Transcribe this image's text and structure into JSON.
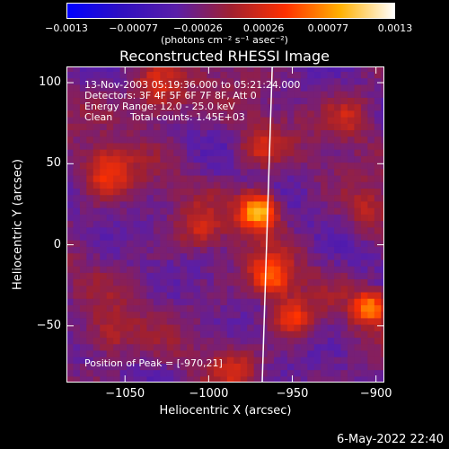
{
  "chart_data": {
    "type": "heatmap",
    "title": "Reconstructed RHESSI Image",
    "xlabel": "Heliocentric X (arcsec)",
    "ylabel": "Heliocentric Y (arcsec)",
    "xlim": [
      -1085,
      -895
    ],
    "ylim": [
      -85,
      110
    ],
    "xticks": [
      -1050,
      -1000,
      -950,
      -900
    ],
    "xtick_labels": [
      "−1050",
      "−1000",
      "−950",
      "−900"
    ],
    "yticks": [
      -50,
      0,
      50,
      100
    ],
    "ytick_labels": [
      "−50",
      "0",
      "50",
      "100"
    ],
    "colorbar": {
      "range": [
        -0.0013,
        0.0013
      ],
      "ticks": [
        -0.0013,
        -0.00077,
        -0.00026,
        0.00026,
        0.00077,
        0.0013
      ],
      "tick_labels": [
        "−0.0013",
        "−0.00077",
        "−0.00026",
        "0.00026",
        "0.00077",
        "0.0013"
      ],
      "unit_label": "(photons cm⁻² s⁻¹ asec⁻²)",
      "colors": [
        "#0000ff",
        "#3010c0",
        "#5a1ea8",
        "#a02030",
        "#ff3000",
        "#ffb000",
        "#ffffff"
      ]
    },
    "peak": {
      "x": -970,
      "y": 21,
      "value": 0.0013
    },
    "sources": [
      {
        "x": -970,
        "y": 21,
        "amplitude": 0.0013,
        "width": 8
      },
      {
        "x": -963,
        "y": -20,
        "amplitude": 0.00085,
        "width": 9
      },
      {
        "x": -950,
        "y": -45,
        "amplitude": 0.0007,
        "width": 8
      },
      {
        "x": -903,
        "y": -38,
        "amplitude": 0.00095,
        "width": 7
      },
      {
        "x": -1060,
        "y": 45,
        "amplitude": 0.00065,
        "width": 10
      },
      {
        "x": -1030,
        "y": 95,
        "amplitude": 0.0006,
        "width": 12
      },
      {
        "x": -970,
        "y": 60,
        "amplitude": 0.00045,
        "width": 9
      },
      {
        "x": -915,
        "y": 80,
        "amplitude": 0.00045,
        "width": 10
      },
      {
        "x": -1060,
        "y": -55,
        "amplitude": 0.00045,
        "width": 10
      },
      {
        "x": -1005,
        "y": 10,
        "amplitude": 0.0004,
        "width": 9
      },
      {
        "x": -985,
        "y": -75,
        "amplitude": 0.00035,
        "width": 9
      },
      {
        "x": -905,
        "y": 20,
        "amplitude": 0.00035,
        "width": 9
      }
    ],
    "background_level": -0.00026,
    "limb_line": {
      "x_top": -962,
      "x_bottom": -968,
      "color": "#ffffff"
    }
  },
  "annotations": {
    "time_range": "13-Nov-2003 05:19:36.000 to 05:21:24.000",
    "detectors": "Detectors: 3F 4F 5F 6F 7F 8F, Att 0",
    "energy_range": "Energy Range: 12.0 - 25.0 keV",
    "clean": "Clean",
    "total_counts": "Total counts: 1.45E+03",
    "peak_position": "Position of Peak = [-970,21]"
  },
  "timestamp": "6-May-2022 22:40"
}
